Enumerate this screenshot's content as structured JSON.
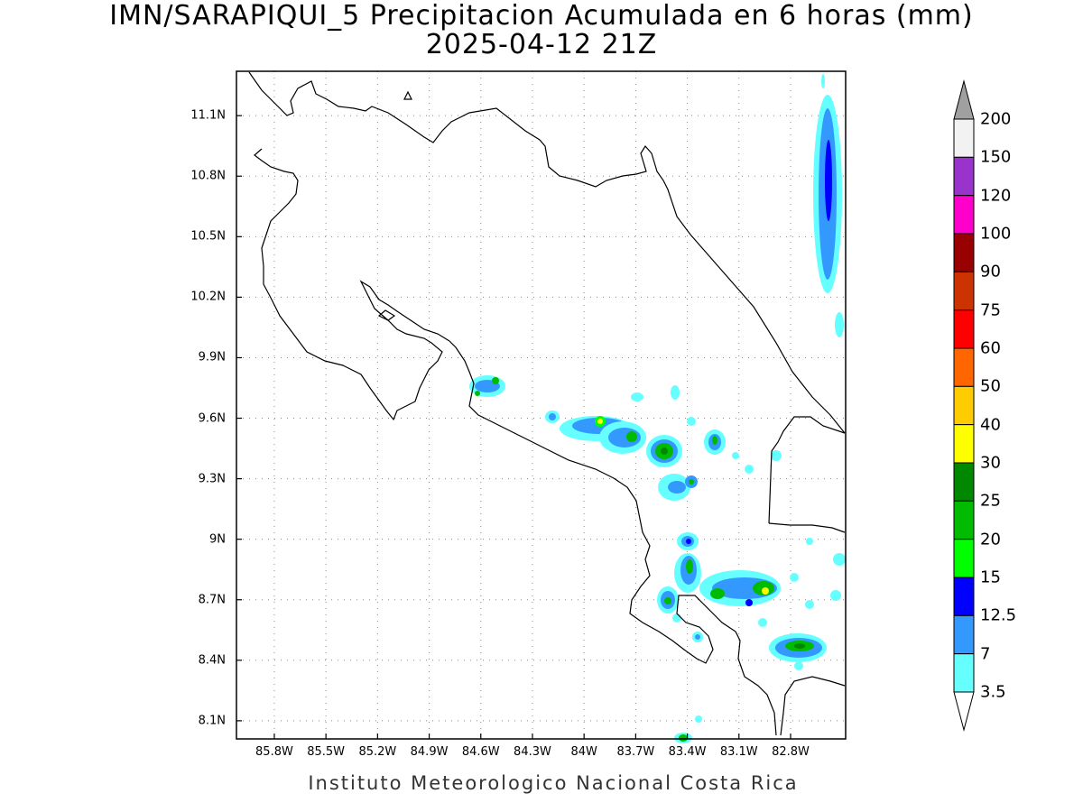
{
  "title": {
    "line1": "IMN/SARAPIQUI_5 Precipitacion Acumulada en 6 horas (mm)",
    "line2": "2025-04-12 21Z"
  },
  "footer": "Instituto Meteorologico Nacional Costa Rica",
  "map": {
    "lon_range": [
      -86.02,
      -82.48
    ],
    "lat_range": [
      8.01,
      11.32
    ],
    "lat_ticks": [
      "11.1N",
      "10.8N",
      "10.5N",
      "10.2N",
      "9.9N",
      "9.6N",
      "9.3N",
      "9N",
      "8.7N",
      "8.4N",
      "8.1N"
    ],
    "lon_ticks": [
      "85.8W",
      "85.5W",
      "85.2W",
      "84.9W",
      "84.6W",
      "84.3W",
      "84W",
      "83.7W",
      "83.4W",
      "83.1W",
      "82.8W"
    ],
    "grid": "dotted"
  },
  "colorbar": {
    "labels": [
      "200",
      "150",
      "120",
      "100",
      "90",
      "75",
      "60",
      "50",
      "40",
      "30",
      "25",
      "20",
      "15",
      "12.5",
      "7",
      "3.5"
    ],
    "colors": [
      "#f2f2f2",
      "#9933cc",
      "#ff00cc",
      "#990000",
      "#cc3300",
      "#ff0000",
      "#ff6600",
      "#ffcc00",
      "#ffff00",
      "#008800",
      "#00bb00",
      "#00ff00",
      "#0000ff",
      "#3399ff",
      "#66ffff"
    ],
    "top_arrow_color": "#a0a0a0",
    "bottom_arrow_color": "#ffffff"
  }
}
